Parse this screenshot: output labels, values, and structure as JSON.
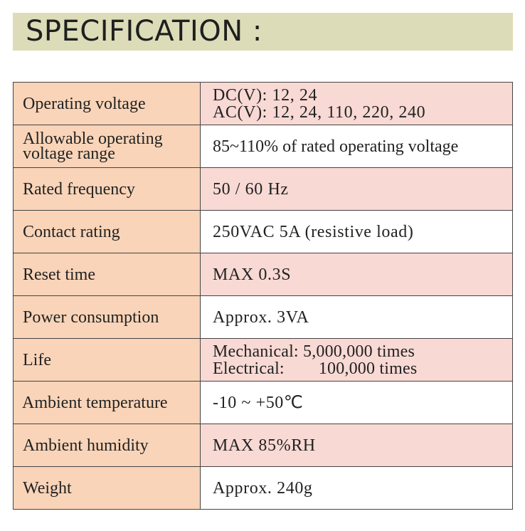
{
  "header": {
    "title": "SPECIFICATION :"
  },
  "colors": {
    "title_band": "#dcdcb8",
    "label_cell": "#f9d4b8",
    "value_cell_shaded": "#f8d9d4",
    "value_cell_plain": "#ffffff",
    "border": "#444444"
  },
  "specs": [
    {
      "label": "Operating voltage",
      "value_lines": [
        "DC(V): 12, 24",
        "AC(V): 12, 24, 110, 220, 240"
      ]
    },
    {
      "label_lines": [
        "Allowable operating",
        "voltage range"
      ],
      "value": "85~110% of rated operating voltage"
    },
    {
      "label": "Rated frequency",
      "value": "50 / 60 Hz"
    },
    {
      "label": "Contact rating",
      "value": "250VAC 5A (resistive load)"
    },
    {
      "label": "Reset time",
      "value": "MAX 0.3S"
    },
    {
      "label": "Power consumption",
      "value": "Approx. 3VA"
    },
    {
      "label": "Life",
      "value_lines": [
        "Mechanical: 5,000,000 times",
        "Electrical:",
        "100,000 times"
      ]
    },
    {
      "label": "Ambient temperature",
      "value": "-10 ~ +50℃"
    },
    {
      "label": "Ambient humidity",
      "value": "MAX 85%RH"
    },
    {
      "label": "Weight",
      "value": "Approx. 240g"
    }
  ]
}
